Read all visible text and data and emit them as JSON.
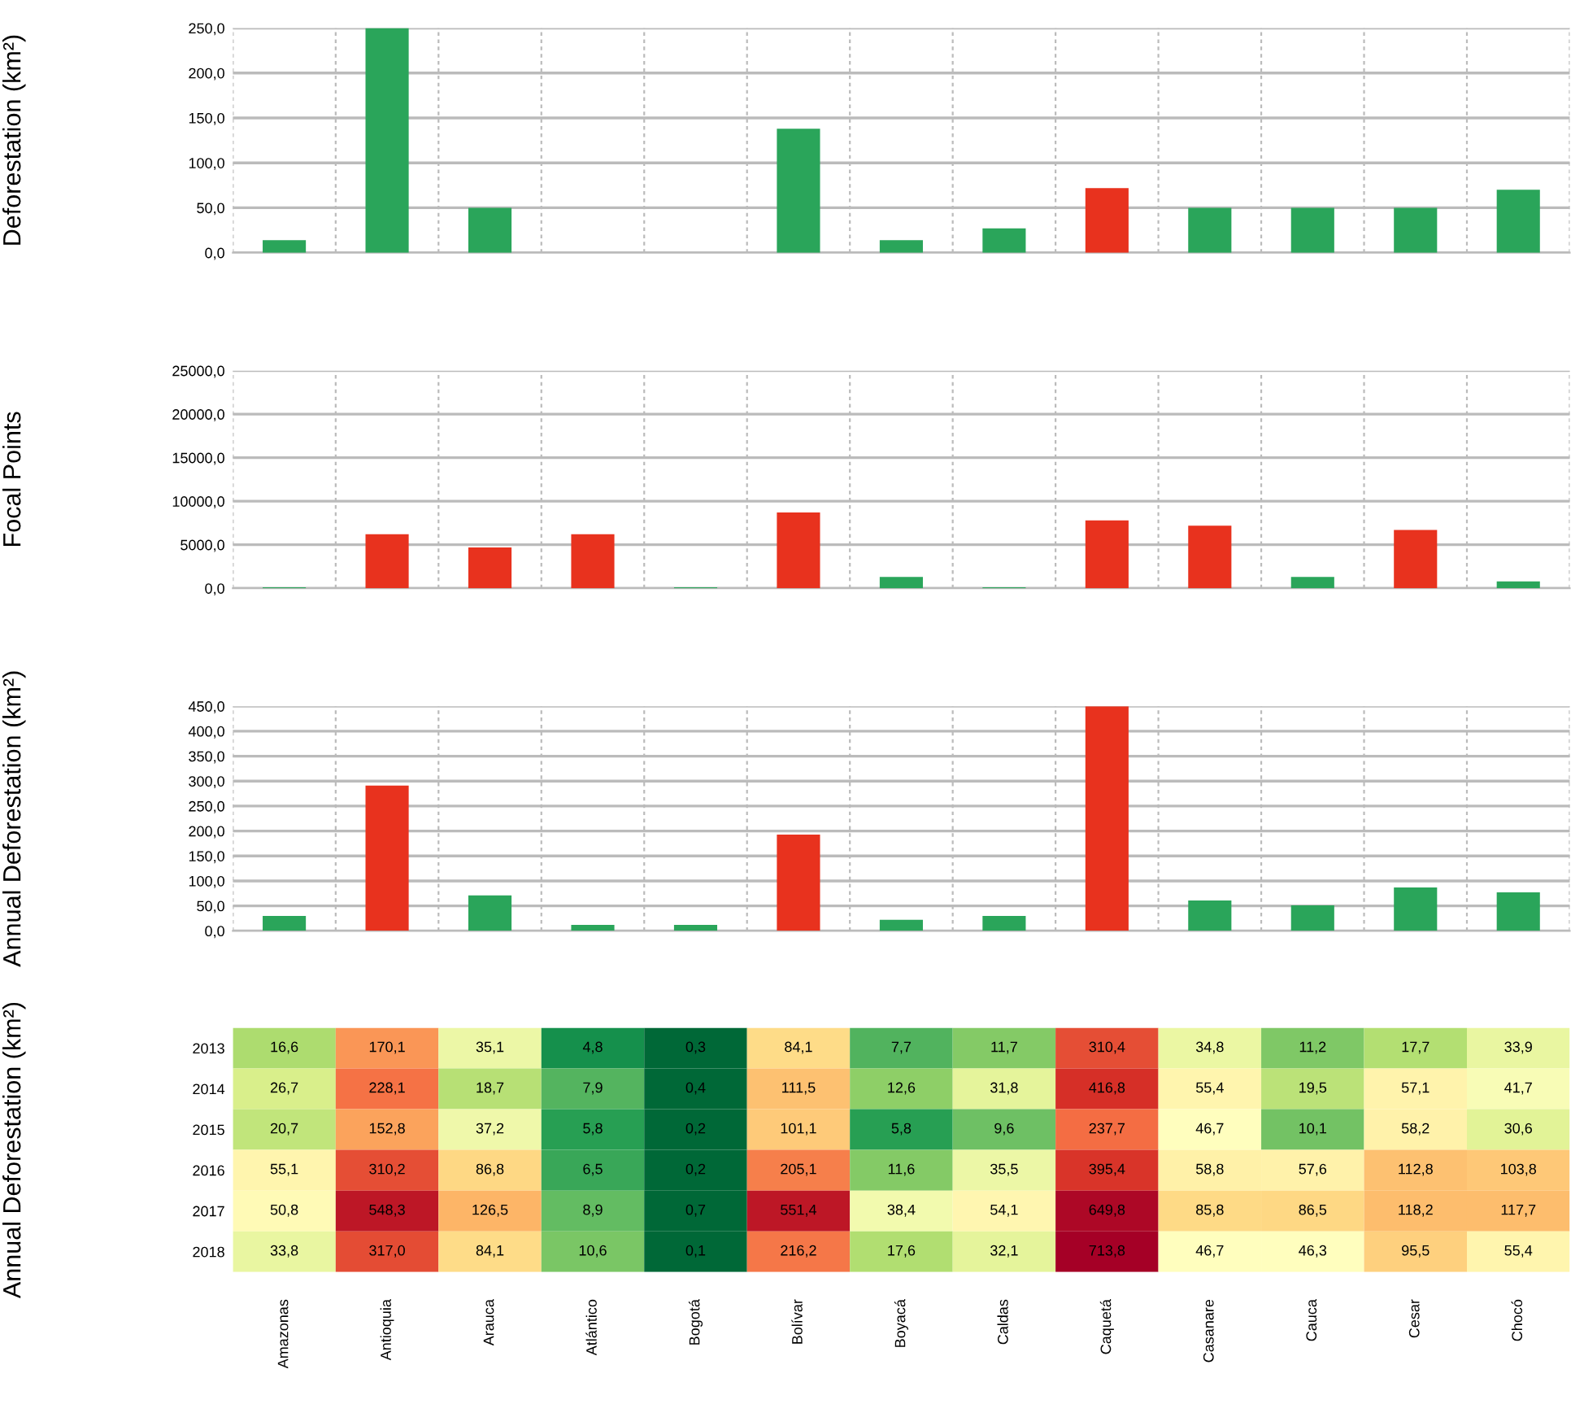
{
  "chart_data": [
    {
      "type": "bar",
      "ylabel": "Deforestation (km²)",
      "categories": [
        null,
        null,
        null,
        null,
        null,
        null,
        null,
        null,
        null,
        null,
        null,
        null,
        null
      ],
      "values": [
        14,
        250,
        50,
        0,
        0,
        138,
        14,
        27,
        72,
        50,
        50,
        50,
        70
      ],
      "colors": [
        "#2aa55a",
        "#2aa55a",
        "#2aa55a",
        "#2aa55a",
        "#2aa55a",
        "#2aa55a",
        "#2aa55a",
        "#2aa55a",
        "#e8321e",
        "#2aa55a",
        "#2aa55a",
        "#2aa55a",
        "#2aa55a"
      ],
      "ylim": [
        0,
        250
      ],
      "yticks": [
        {
          "value": 0,
          "label": "0,0"
        },
        {
          "value": 50,
          "label": "50,0"
        },
        {
          "value": 100,
          "label": "100,0"
        },
        {
          "value": 150,
          "label": "150,0"
        },
        {
          "value": 200,
          "label": "200,0"
        },
        {
          "value": 250,
          "label": "250,0"
        }
      ],
      "grid": true,
      "tick_labels": "y"
    },
    {
      "type": "bar",
      "ylabel": "Focal Points",
      "categories": [
        null,
        null,
        null,
        null,
        null,
        null,
        null,
        null,
        null,
        null,
        null,
        null,
        null
      ],
      "values": [
        100,
        6200,
        4700,
        6200,
        100,
        8700,
        1300,
        100,
        7800,
        7200,
        1300,
        6700,
        800
      ],
      "colors": [
        "#2aa55a",
        "#e8321e",
        "#e8321e",
        "#e8321e",
        "#2aa55a",
        "#e8321e",
        "#2aa55a",
        "#2aa55a",
        "#e8321e",
        "#e8321e",
        "#2aa55a",
        "#e8321e",
        "#2aa55a"
      ],
      "ylim": [
        0,
        25000
      ],
      "yticks": [
        {
          "value": 0,
          "label": "0,0"
        },
        {
          "value": 5000,
          "label": "5000,0"
        },
        {
          "value": 10000,
          "label": "10000,0"
        },
        {
          "value": 15000,
          "label": "15000,0"
        },
        {
          "value": 20000,
          "label": "20000,0"
        },
        {
          "value": 25000,
          "label": "25000,0"
        }
      ],
      "grid": true,
      "tick_labels": "y"
    },
    {
      "type": "bar",
      "ylabel": "Annual Deforestation (km²)",
      "categories": [
        null,
        null,
        null,
        null,
        null,
        null,
        null,
        null,
        null,
        null,
        null,
        null,
        null
      ],
      "values": [
        30,
        291,
        71,
        12,
        12,
        193,
        22,
        30,
        450,
        61,
        51,
        87,
        77
      ],
      "colors": [
        "#2aa55a",
        "#e8321e",
        "#2aa55a",
        "#2aa55a",
        "#2aa55a",
        "#e8321e",
        "#2aa55a",
        "#2aa55a",
        "#e8321e",
        "#2aa55a",
        "#2aa55a",
        "#2aa55a",
        "#2aa55a"
      ],
      "ylim": [
        0,
        450
      ],
      "yticks": [
        {
          "value": 0,
          "label": "0,0"
        },
        {
          "value": 50,
          "label": "50,0"
        },
        {
          "value": 100,
          "label": "100,0"
        },
        {
          "value": 150,
          "label": "150,0"
        },
        {
          "value": 200,
          "label": "200,0"
        },
        {
          "value": 250,
          "label": "250,0"
        },
        {
          "value": 300,
          "label": "300,0"
        },
        {
          "value": 350,
          "label": "350,0"
        },
        {
          "value": 400,
          "label": "400,0"
        },
        {
          "value": 450,
          "label": "450,0"
        }
      ],
      "grid": true,
      "tick_labels": "y"
    },
    {
      "type": "heatmap",
      "ylabel": "Annual Deforestation (km²)",
      "categories": [
        "Amazonas",
        "Antioquia",
        "Arauca",
        "Atlántico",
        "Bogotá",
        "Bolívar",
        "Boyacá",
        "Caldas",
        "Caquetá",
        "Casanare",
        "Cauca",
        "Cesar",
        "Chocó"
      ],
      "y_categories": [
        "2013",
        "2014",
        "2015",
        "2016",
        "2017",
        "2018"
      ],
      "cells": [
        [
          16.6,
          170.1,
          35.1,
          4.8,
          0.3,
          84.1,
          7.7,
          11.7,
          310.4,
          34.8,
          11.2,
          17.7,
          33.9
        ],
        [
          26.7,
          228.1,
          18.7,
          7.9,
          0.4,
          111.5,
          12.6,
          31.8,
          416.8,
          55.4,
          19.5,
          57.1,
          41.7
        ],
        [
          20.7,
          152.8,
          37.2,
          5.8,
          0.2,
          101.1,
          5.8,
          9.6,
          237.7,
          46.7,
          10.1,
          58.2,
          30.6
        ],
        [
          55.1,
          310.2,
          86.8,
          6.5,
          0.2,
          205.1,
          11.6,
          35.5,
          395.4,
          58.8,
          57.6,
          112.8,
          103.8
        ],
        [
          50.8,
          548.3,
          126.5,
          8.9,
          0.7,
          551.4,
          38.4,
          54.1,
          649.8,
          85.8,
          86.5,
          118.2,
          117.7
        ],
        [
          33.8,
          317.0,
          84.1,
          10.6,
          0.1,
          216.2,
          17.6,
          32.1,
          713.8,
          46.7,
          46.3,
          95.5,
          55.4
        ]
      ],
      "cell_labels": [
        [
          "16,6",
          "170,1",
          "35,1",
          "4,8",
          "0,3",
          "84,1",
          "7,7",
          "11,7",
          "310,4",
          "34,8",
          "11,2",
          "17,7",
          "33,9"
        ],
        [
          "26,7",
          "228,1",
          "18,7",
          "7,9",
          "0,4",
          "111,5",
          "12,6",
          "31,8",
          "416,8",
          "55,4",
          "19,5",
          "57,1",
          "41,7"
        ],
        [
          "20,7",
          "152,8",
          "37,2",
          "5,8",
          "0,2",
          "101,1",
          "5,8",
          "9,6",
          "237,7",
          "46,7",
          "10,1",
          "58,2",
          "30,6"
        ],
        [
          "55,1",
          "310,2",
          "86,8",
          "6,5",
          "0,2",
          "205,1",
          "11,6",
          "35,5",
          "395,4",
          "58,8",
          "57,6",
          "112,8",
          "103,8"
        ],
        [
          "50,8",
          "548,3",
          "126,5",
          "8,9",
          "0,7",
          "551,4",
          "38,4",
          "54,1",
          "649,8",
          "85,8",
          "86,5",
          "118,2",
          "117,7"
        ],
        [
          "33,8",
          "317,0",
          "84,1",
          "10,6",
          "0,1",
          "216,2",
          "17,6",
          "32,1",
          "713,8",
          "46,7",
          "46,3",
          "95,5",
          "55,4"
        ]
      ]
    }
  ]
}
